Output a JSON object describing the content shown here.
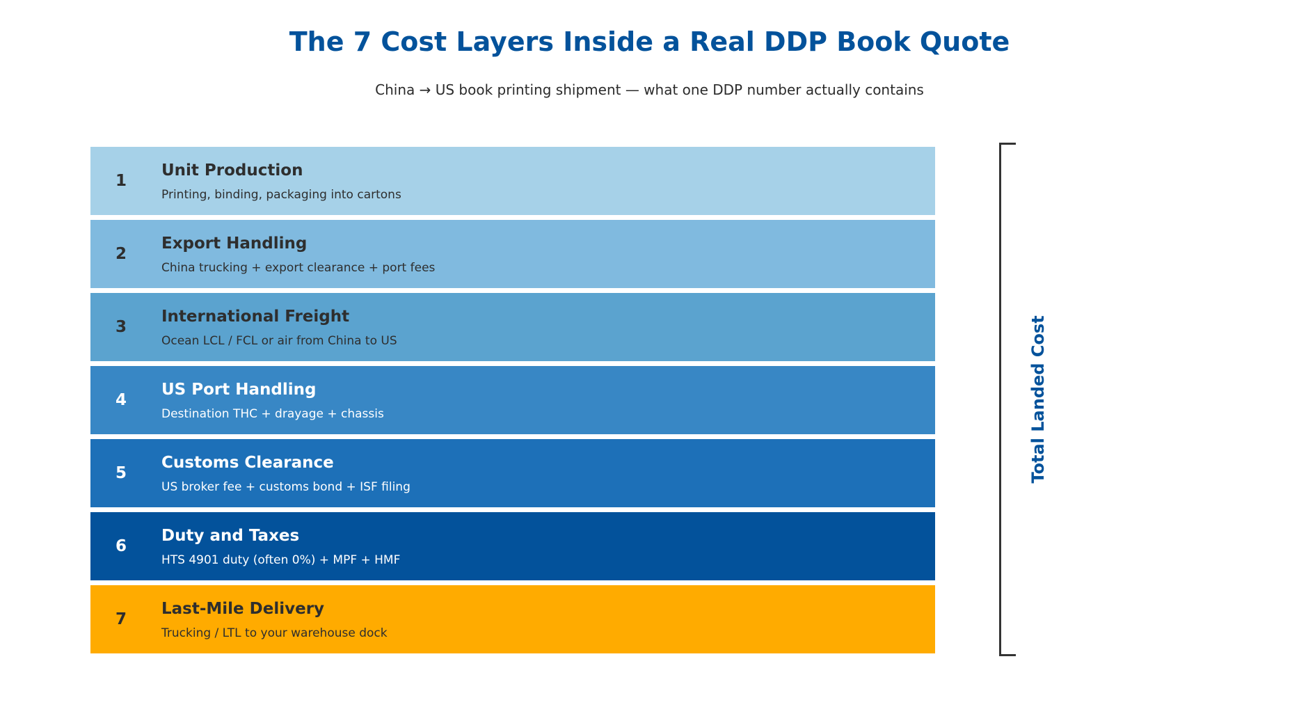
{
  "title": "The 7 Cost Layers Inside a Real DDP Book Quote",
  "subtitle": "China → US book printing shipment — what one DDP number actually contains",
  "layers": [
    {
      "number": "1",
      "title": "Unit Production",
      "description": "Printing, binding, packaging into cartons",
      "color": "#a6d1e8",
      "text_tone": "dark"
    },
    {
      "number": "2",
      "title": "Export Handling",
      "description": "China trucking + export clearance + port fees",
      "color": "#80badf",
      "text_tone": "dark"
    },
    {
      "number": "3",
      "title": "International Freight",
      "description": "Ocean LCL / FCL or air from China to US",
      "color": "#5ba3cf",
      "text_tone": "dark"
    },
    {
      "number": "4",
      "title": "US Port Handling",
      "description": "Destination THC + drayage + chassis",
      "color": "#3887c5",
      "text_tone": "light"
    },
    {
      "number": "5",
      "title": "Customs Clearance",
      "description": "US broker fee + customs bond + ISF filing",
      "color": "#1d70b8",
      "text_tone": "light"
    },
    {
      "number": "6",
      "title": "Duty and Taxes",
      "description": "HTS 4901 duty (often 0%) + MPF + HMF",
      "color": "#03529b",
      "text_tone": "light"
    },
    {
      "number": "7",
      "title": "Last-Mile Delivery",
      "description": "Trucking / LTL to your warehouse dock",
      "color": "#ffab00",
      "text_tone": "dark"
    }
  ],
  "bracket": {
    "label": "Total Landed Cost",
    "label_color": "#03529b",
    "line_color": "#333333"
  }
}
